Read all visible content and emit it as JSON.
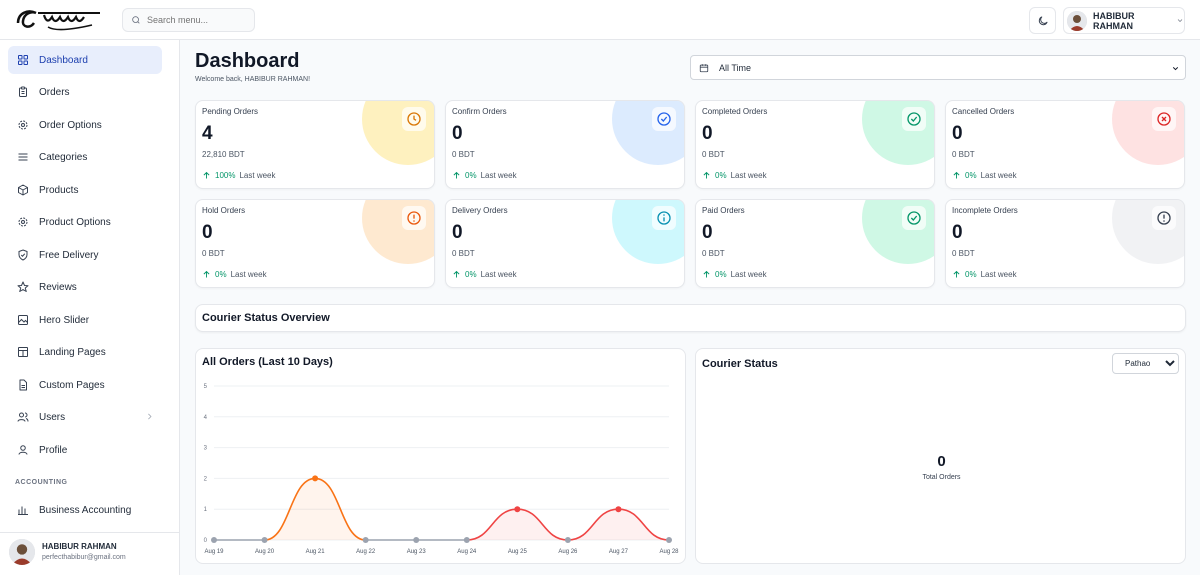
{
  "brand": {
    "logo_text": "পারফেক্ট"
  },
  "search": {
    "placeholder": "Search menu..."
  },
  "header": {
    "user_name": "HABIBUR RAHMAN"
  },
  "sidebar": {
    "items": [
      {
        "label": "Dashboard",
        "icon": "grid-icon"
      },
      {
        "label": "Orders",
        "icon": "clipboard-icon"
      },
      {
        "label": "Order Options",
        "icon": "gear-icon"
      },
      {
        "label": "Categories",
        "icon": "list-icon"
      },
      {
        "label": "Products",
        "icon": "box-icon"
      },
      {
        "label": "Product Options",
        "icon": "gear-icon"
      },
      {
        "label": "Free Delivery",
        "icon": "shield-icon"
      },
      {
        "label": "Reviews",
        "icon": "star-icon"
      },
      {
        "label": "Hero Slider",
        "icon": "image-icon"
      },
      {
        "label": "Landing Pages",
        "icon": "layout-icon"
      },
      {
        "label": "Custom Pages",
        "icon": "file-icon"
      },
      {
        "label": "Users",
        "icon": "users-icon"
      },
      {
        "label": "Profile",
        "icon": "user-icon"
      }
    ],
    "section_accounting": "ACCOUNTING",
    "accounting_item": "Business Accounting",
    "user": {
      "name": "HABIBUR RAHMAN",
      "email": "perfecthabibur@gmail.com"
    }
  },
  "main": {
    "title": "Dashboard",
    "welcome": "Welcome back, HABIBUR RAHMAN!",
    "range_value": "All Time",
    "stats": [
      {
        "label": "Pending Orders",
        "value": "4",
        "amount": "22,810 BDT",
        "pct": "100%",
        "period": "Last week",
        "color": "#f59e0b",
        "bg": "#fde68a"
      },
      {
        "label": "Confirm Orders",
        "value": "0",
        "amount": "0 BDT",
        "pct": "0%",
        "period": "Last week",
        "color": "#2563eb",
        "bg": "#bfdbfe"
      },
      {
        "label": "Completed Orders",
        "value": "0",
        "amount": "0 BDT",
        "pct": "0%",
        "period": "Last week",
        "color": "#10b981",
        "bg": "#a7f3d0"
      },
      {
        "label": "Cancelled Orders",
        "value": "0",
        "amount": "0 BDT",
        "pct": "0%",
        "period": "Last week",
        "color": "#ef4444",
        "bg": "#fecaca"
      },
      {
        "label": "Hold Orders",
        "value": "0",
        "amount": "0 BDT",
        "pct": "0%",
        "period": "Last week",
        "color": "#f97316",
        "bg": "#fed7aa"
      },
      {
        "label": "Delivery Orders",
        "value": "0",
        "amount": "0 BDT",
        "pct": "0%",
        "period": "Last week",
        "color": "#0891b2",
        "bg": "#a5f3fc"
      },
      {
        "label": "Paid Orders",
        "value": "0",
        "amount": "0 BDT",
        "pct": "0%",
        "period": "Last week",
        "color": "#10b981",
        "bg": "#a7f3d0"
      },
      {
        "label": "Incomplete Orders",
        "value": "0",
        "amount": "0 BDT",
        "pct": "0%",
        "period": "Last week",
        "color": "#4b5563",
        "bg": "#e5e7eb"
      }
    ],
    "courier_overview_title": "Courier Status Overview",
    "courier_status": {
      "title": "Courier Status",
      "selected": "Pathao",
      "total": "0",
      "total_label": "Total Orders"
    }
  },
  "chart_data": {
    "type": "line",
    "title": "All Orders (Last 10 Days)",
    "categories": [
      "Aug 19",
      "Aug 20",
      "Aug 21",
      "Aug 22",
      "Aug 23",
      "Aug 24",
      "Aug 25",
      "Aug 26",
      "Aug 27",
      "Aug 28"
    ],
    "values": [
      0,
      0,
      2,
      0,
      0,
      0,
      1,
      0,
      1,
      0
    ],
    "ylim": [
      0,
      5
    ],
    "yticks": [
      0,
      1,
      2,
      3,
      4,
      5
    ],
    "grid": true
  }
}
